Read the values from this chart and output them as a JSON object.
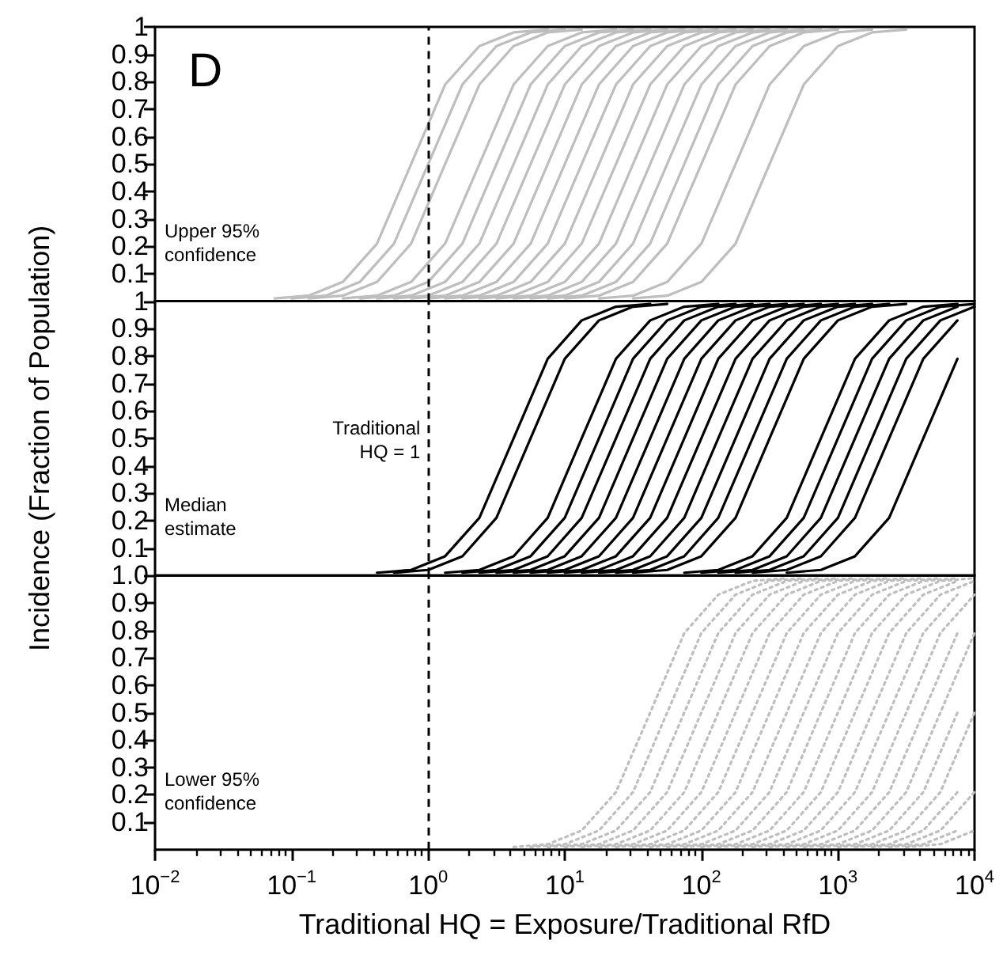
{
  "chart_data": [
    {
      "type": "line",
      "title": "D",
      "annotations": [
        "Upper 95%\nconfidence"
      ],
      "log": "x",
      "color": "#bebebe",
      "line_style": "solid",
      "tick_labels": "y",
      "xlim": [
        0.01,
        10000
      ],
      "ylim": [
        0,
        1
      ],
      "yticks": [
        0.1,
        0.2,
        0.3,
        0.4,
        0.5,
        0.6,
        0.7,
        0.8,
        0.9,
        1
      ],
      "ref_lines": [
        {
          "axis": "x",
          "value": 1,
          "line_style": "dashed",
          "color": "#000000"
        }
      ],
      "series": [
        {
          "x": [
            0.075,
            0.133,
            0.237,
            0.422,
            0.75,
            1.33,
            2.37,
            4.22,
            7.5
          ],
          "values": [
            0.01,
            0.02,
            0.07,
            0.21,
            0.5,
            0.79,
            0.93,
            0.98,
            0.99
          ]
        },
        {
          "x": [
            0.1,
            0.178,
            0.316,
            0.562,
            1,
            1.78,
            3.16,
            5.62,
            10
          ],
          "values": [
            0.01,
            0.02,
            0.07,
            0.21,
            0.5,
            0.79,
            0.93,
            0.98,
            0.99
          ]
        },
        {
          "x": [
            0.133,
            0.237,
            0.422,
            0.75,
            1.33,
            2.37,
            4.22,
            7.5,
            13.3
          ],
          "values": [
            0.01,
            0.02,
            0.07,
            0.21,
            0.5,
            0.79,
            0.93,
            0.98,
            0.99
          ]
        },
        {
          "x": [
            0.237,
            0.422,
            0.75,
            1.33,
            2.37,
            4.22,
            7.5,
            13.3,
            23.7
          ],
          "values": [
            0.01,
            0.02,
            0.07,
            0.21,
            0.5,
            0.79,
            0.93,
            0.98,
            0.99
          ]
        },
        {
          "x": [
            0.316,
            0.562,
            1,
            1.78,
            3.16,
            5.62,
            10,
            17.8,
            31.6
          ],
          "values": [
            0.01,
            0.02,
            0.07,
            0.21,
            0.5,
            0.79,
            0.93,
            0.98,
            0.99
          ]
        },
        {
          "x": [
            0.422,
            0.75,
            1.33,
            2.37,
            4.22,
            7.5,
            13.3,
            23.7,
            42.2
          ],
          "values": [
            0.01,
            0.02,
            0.07,
            0.21,
            0.5,
            0.79,
            0.93,
            0.98,
            0.99
          ]
        },
        {
          "x": [
            0.562,
            1,
            1.78,
            3.16,
            5.62,
            10,
            17.8,
            31.6,
            56.2
          ],
          "values": [
            0.01,
            0.02,
            0.07,
            0.21,
            0.5,
            0.79,
            0.93,
            0.98,
            0.99
          ]
        },
        {
          "x": [
            0.75,
            1.33,
            2.37,
            4.22,
            7.5,
            13.3,
            23.7,
            42.2,
            75
          ],
          "values": [
            0.01,
            0.02,
            0.07,
            0.21,
            0.5,
            0.79,
            0.93,
            0.98,
            0.99
          ]
        },
        {
          "x": [
            1,
            1.78,
            3.16,
            5.62,
            10,
            17.8,
            31.6,
            56.2,
            100
          ],
          "values": [
            0.01,
            0.02,
            0.07,
            0.21,
            0.5,
            0.79,
            0.93,
            0.98,
            0.99
          ]
        },
        {
          "x": [
            1.33,
            2.37,
            4.22,
            7.5,
            13.3,
            23.7,
            42.2,
            75,
            133
          ],
          "values": [
            0.01,
            0.02,
            0.07,
            0.21,
            0.5,
            0.79,
            0.93,
            0.98,
            0.99
          ]
        },
        {
          "x": [
            1.78,
            3.16,
            5.62,
            10,
            17.8,
            31.6,
            56.2,
            100,
            178
          ],
          "values": [
            0.01,
            0.02,
            0.07,
            0.21,
            0.5,
            0.79,
            0.93,
            0.98,
            0.99
          ]
        },
        {
          "x": [
            2.37,
            4.22,
            7.5,
            13.3,
            23.7,
            42.2,
            75,
            133,
            237
          ],
          "values": [
            0.01,
            0.02,
            0.07,
            0.21,
            0.5,
            0.79,
            0.93,
            0.98,
            0.99
          ]
        },
        {
          "x": [
            3.16,
            5.62,
            10,
            17.8,
            31.6,
            56.2,
            100,
            178,
            316
          ],
          "values": [
            0.01,
            0.02,
            0.07,
            0.21,
            0.5,
            0.79,
            0.93,
            0.98,
            0.99
          ]
        },
        {
          "x": [
            4.22,
            7.5,
            13.3,
            23.7,
            42.2,
            75,
            133,
            237,
            422
          ],
          "values": [
            0.01,
            0.02,
            0.07,
            0.21,
            0.5,
            0.79,
            0.93,
            0.98,
            0.99
          ]
        },
        {
          "x": [
            5.62,
            10,
            17.8,
            31.6,
            56.2,
            100,
            178,
            316,
            562
          ],
          "values": [
            0.01,
            0.02,
            0.07,
            0.21,
            0.5,
            0.79,
            0.93,
            0.98,
            0.99
          ]
        },
        {
          "x": [
            7.5,
            13.3,
            23.7,
            42.2,
            75,
            133,
            237,
            422,
            750
          ],
          "values": [
            0.01,
            0.02,
            0.07,
            0.21,
            0.5,
            0.79,
            0.93,
            0.98,
            0.99
          ]
        },
        {
          "x": [
            10,
            17.8,
            31.6,
            56.2,
            100,
            178,
            316,
            562,
            1000
          ],
          "values": [
            0.01,
            0.02,
            0.07,
            0.21,
            0.5,
            0.79,
            0.93,
            0.98,
            0.99
          ]
        },
        {
          "x": [
            17.8,
            31.6,
            56.2,
            100,
            178,
            316,
            562,
            1000,
            1778
          ],
          "values": [
            0.01,
            0.02,
            0.07,
            0.21,
            0.5,
            0.79,
            0.93,
            0.98,
            0.99
          ]
        },
        {
          "x": [
            31.6,
            56.2,
            100,
            178,
            316,
            562,
            1000,
            1778,
            3162
          ],
          "values": [
            0.01,
            0.02,
            0.07,
            0.21,
            0.5,
            0.79,
            0.93,
            0.98,
            0.99
          ]
        }
      ]
    },
    {
      "type": "line",
      "annotations": [
        "Median\nestimate"
      ],
      "ylabel": "Incidence (Fraction of Population)",
      "log": "x",
      "color": "#000000",
      "line_style": "solid",
      "tick_labels": "y",
      "xlim": [
        0.01,
        10000
      ],
      "ylim": [
        0,
        1
      ],
      "yticks": [
        0.1,
        0.2,
        0.3,
        0.4,
        0.5,
        0.6,
        0.7,
        0.8,
        0.9,
        1
      ],
      "ref_lines": [
        {
          "axis": "x",
          "value": 1,
          "line_style": "dashed",
          "color": "#000000",
          "label": "Traditional\nHQ = 1"
        }
      ],
      "series": [
        {
          "x": [
            0.422,
            0.75,
            1.33,
            2.37,
            4.22,
            7.5,
            13.3,
            23.7,
            42.2
          ],
          "values": [
            0.01,
            0.02,
            0.07,
            0.21,
            0.5,
            0.79,
            0.93,
            0.98,
            0.99
          ]
        },
        {
          "x": [
            0.562,
            1,
            1.78,
            3.16,
            5.62,
            10,
            17.8,
            31.6,
            56.2
          ],
          "values": [
            0.01,
            0.02,
            0.07,
            0.21,
            0.5,
            0.79,
            0.93,
            0.98,
            0.99
          ]
        },
        {
          "x": [
            1.33,
            2.37,
            4.22,
            7.5,
            13.3,
            23.7,
            42.2,
            75,
            133
          ],
          "values": [
            0.01,
            0.02,
            0.07,
            0.21,
            0.5,
            0.79,
            0.93,
            0.98,
            0.99
          ]
        },
        {
          "x": [
            1.78,
            3.16,
            5.62,
            10,
            17.8,
            31.6,
            56.2,
            100,
            178
          ],
          "values": [
            0.01,
            0.02,
            0.07,
            0.21,
            0.5,
            0.79,
            0.93,
            0.98,
            0.99
          ]
        },
        {
          "x": [
            2.37,
            4.22,
            7.5,
            13.3,
            23.7,
            42.2,
            75,
            133,
            237
          ],
          "values": [
            0.01,
            0.02,
            0.07,
            0.21,
            0.5,
            0.79,
            0.93,
            0.98,
            0.99
          ]
        },
        {
          "x": [
            3.16,
            5.62,
            10,
            17.8,
            31.6,
            56.2,
            100,
            178,
            316
          ],
          "values": [
            0.01,
            0.02,
            0.07,
            0.21,
            0.5,
            0.79,
            0.93,
            0.98,
            0.99
          ]
        },
        {
          "x": [
            4.22,
            7.5,
            13.3,
            23.7,
            42.2,
            75,
            133,
            237,
            422
          ],
          "values": [
            0.01,
            0.02,
            0.07,
            0.21,
            0.5,
            0.79,
            0.93,
            0.98,
            0.99
          ]
        },
        {
          "x": [
            5.62,
            10,
            17.8,
            31.6,
            56.2,
            100,
            178,
            316,
            562
          ],
          "values": [
            0.01,
            0.02,
            0.07,
            0.21,
            0.5,
            0.79,
            0.93,
            0.98,
            0.99
          ]
        },
        {
          "x": [
            7.5,
            13.3,
            23.7,
            42.2,
            75,
            133,
            237,
            422,
            750
          ],
          "values": [
            0.01,
            0.02,
            0.07,
            0.21,
            0.5,
            0.79,
            0.93,
            0.98,
            0.99
          ]
        },
        {
          "x": [
            10,
            17.8,
            31.6,
            56.2,
            100,
            178,
            316,
            562,
            1000
          ],
          "values": [
            0.01,
            0.02,
            0.07,
            0.21,
            0.5,
            0.79,
            0.93,
            0.98,
            0.99
          ]
        },
        {
          "x": [
            13.3,
            23.7,
            42.2,
            75,
            133,
            237,
            422,
            750,
            1333
          ],
          "values": [
            0.01,
            0.02,
            0.07,
            0.21,
            0.5,
            0.79,
            0.93,
            0.98,
            0.99
          ]
        },
        {
          "x": [
            17.8,
            31.6,
            56.2,
            100,
            178,
            316,
            562,
            1000,
            1778
          ],
          "values": [
            0.01,
            0.02,
            0.07,
            0.21,
            0.5,
            0.79,
            0.93,
            0.98,
            0.99
          ]
        },
        {
          "x": [
            23.7,
            42.2,
            75,
            133,
            237,
            422,
            750,
            1333,
            2371
          ],
          "values": [
            0.01,
            0.02,
            0.07,
            0.21,
            0.5,
            0.79,
            0.93,
            0.98,
            0.99
          ]
        },
        {
          "x": [
            31.6,
            56.2,
            100,
            178,
            316,
            562,
            1000,
            1778,
            3162
          ],
          "values": [
            0.01,
            0.02,
            0.07,
            0.21,
            0.5,
            0.79,
            0.93,
            0.98,
            0.99
          ]
        },
        {
          "x": [
            75,
            133,
            237,
            422,
            750,
            1333,
            2371,
            4217,
            7499
          ],
          "values": [
            0.01,
            0.02,
            0.07,
            0.21,
            0.5,
            0.79,
            0.93,
            0.98,
            0.99
          ]
        },
        {
          "x": [
            100,
            178,
            316,
            562,
            1000,
            1778,
            3162,
            5623,
            10000
          ],
          "values": [
            0.01,
            0.02,
            0.07,
            0.21,
            0.5,
            0.79,
            0.93,
            0.98,
            0.99
          ]
        },
        {
          "x": [
            133,
            237,
            422,
            750,
            1333,
            2371,
            4217,
            7499
          ],
          "values": [
            0.01,
            0.02,
            0.07,
            0.21,
            0.5,
            0.79,
            0.93,
            0.98
          ]
        },
        {
          "x": [
            178,
            316,
            562,
            1000,
            1778,
            3162,
            5623,
            10000
          ],
          "values": [
            0.01,
            0.02,
            0.07,
            0.21,
            0.5,
            0.79,
            0.93,
            0.98
          ]
        },
        {
          "x": [
            237,
            422,
            750,
            1333,
            2371,
            4217,
            7499
          ],
          "values": [
            0.01,
            0.02,
            0.07,
            0.21,
            0.5,
            0.79,
            0.93
          ]
        },
        {
          "x": [
            422,
            750,
            1333,
            2371,
            4217,
            7499
          ],
          "values": [
            0.01,
            0.02,
            0.07,
            0.21,
            0.5,
            0.79
          ]
        }
      ]
    },
    {
      "type": "line",
      "annotations": [
        "Lower 95%\nconfidence"
      ],
      "xlabel": "Traditional HQ = Exposure/Traditional RfD",
      "log": "x",
      "color": "#bebebe",
      "line_style": "dotted",
      "xlim": [
        0.01,
        10000
      ],
      "ylim": [
        0,
        1
      ],
      "yticks": [
        0.1,
        0.2,
        0.3,
        0.4,
        0.5,
        0.6,
        0.7,
        0.8,
        0.9,
        {
          "value": 1,
          "label": "1.0"
        }
      ],
      "xticks": [
        {
          "value": 0.01,
          "label": "10$^{−2}$"
        },
        {
          "value": 0.02,
          "label": null
        },
        {
          "value": 0.03,
          "label": null
        },
        {
          "value": 0.04,
          "label": null
        },
        {
          "value": 0.05,
          "label": null
        },
        {
          "value": 0.06,
          "label": null
        },
        {
          "value": 0.07,
          "label": null
        },
        {
          "value": 0.08,
          "label": null
        },
        {
          "value": 0.09,
          "label": null
        },
        {
          "value": 0.1,
          "label": "10$^{−1}$"
        },
        {
          "value": 0.2,
          "label": null
        },
        {
          "value": 0.3,
          "label": null
        },
        {
          "value": 0.4,
          "label": null
        },
        {
          "value": 0.5,
          "label": null
        },
        {
          "value": 0.6,
          "label": null
        },
        {
          "value": 0.7,
          "label": null
        },
        {
          "value": 0.8,
          "label": null
        },
        {
          "value": 0.9,
          "label": null
        },
        {
          "value": 1,
          "label": "10$^{0}$"
        },
        {
          "value": 2,
          "label": null
        },
        {
          "value": 3,
          "label": null
        },
        {
          "value": 4,
          "label": null
        },
        {
          "value": 5,
          "label": null
        },
        {
          "value": 6,
          "label": null
        },
        {
          "value": 7,
          "label": null
        },
        {
          "value": 8,
          "label": null
        },
        {
          "value": 9,
          "label": null
        },
        {
          "value": 10,
          "label": "10$^{1}$"
        },
        {
          "value": 20,
          "label": null
        },
        {
          "value": 30,
          "label": null
        },
        {
          "value": 40,
          "label": null
        },
        {
          "value": 50,
          "label": null
        },
        {
          "value": 60,
          "label": null
        },
        {
          "value": 70,
          "label": null
        },
        {
          "value": 80,
          "label": null
        },
        {
          "value": 90,
          "label": null
        },
        {
          "value": 100,
          "label": "10$^{2}$"
        },
        {
          "value": 200,
          "label": null
        },
        {
          "value": 300,
          "label": null
        },
        {
          "value": 400,
          "label": null
        },
        {
          "value": 500,
          "label": null
        },
        {
          "value": 600,
          "label": null
        },
        {
          "value": 700,
          "label": null
        },
        {
          "value": 800,
          "label": null
        },
        {
          "value": 900,
          "label": null
        },
        {
          "value": 1000,
          "label": "10$^{3}$"
        },
        {
          "value": 2000,
          "label": null
        },
        {
          "value": 3000,
          "label": null
        },
        {
          "value": 4000,
          "label": null
        },
        {
          "value": 5000,
          "label": null
        },
        {
          "value": 6000,
          "label": null
        },
        {
          "value": 7000,
          "label": null
        },
        {
          "value": 8000,
          "label": null
        },
        {
          "value": 9000,
          "label": null
        },
        {
          "value": 10000,
          "label": "10$^{4}$"
        }
      ],
      "ref_lines": [
        {
          "axis": "x",
          "value": 1,
          "line_style": "dashed",
          "color": "#000000"
        }
      ],
      "series": [
        {
          "x": [
            4.22,
            7.5,
            13.3,
            23.7,
            42.2,
            75,
            133,
            237,
            422
          ],
          "values": [
            0.01,
            0.02,
            0.07,
            0.21,
            0.5,
            0.79,
            0.93,
            0.98,
            0.99
          ]
        },
        {
          "x": [
            5.62,
            10,
            17.8,
            31.6,
            56.2,
            100,
            178,
            316,
            562
          ],
          "values": [
            0.01,
            0.02,
            0.07,
            0.21,
            0.5,
            0.79,
            0.93,
            0.98,
            0.99
          ]
        },
        {
          "x": [
            7.5,
            13.3,
            23.7,
            42.2,
            75,
            133,
            237,
            422,
            750
          ],
          "values": [
            0.01,
            0.02,
            0.07,
            0.21,
            0.5,
            0.79,
            0.93,
            0.98,
            0.99
          ]
        },
        {
          "x": [
            10,
            17.8,
            31.6,
            56.2,
            100,
            178,
            316,
            562,
            1000
          ],
          "values": [
            0.01,
            0.02,
            0.07,
            0.21,
            0.5,
            0.79,
            0.93,
            0.98,
            0.99
          ]
        },
        {
          "x": [
            13.3,
            23.7,
            42.2,
            75,
            133,
            237,
            422,
            750,
            1333
          ],
          "values": [
            0.01,
            0.02,
            0.07,
            0.21,
            0.5,
            0.79,
            0.93,
            0.98,
            0.99
          ]
        },
        {
          "x": [
            17.8,
            31.6,
            56.2,
            100,
            178,
            316,
            562,
            1000,
            1778
          ],
          "values": [
            0.01,
            0.02,
            0.07,
            0.21,
            0.5,
            0.79,
            0.93,
            0.98,
            0.99
          ]
        },
        {
          "x": [
            23.7,
            42.2,
            75,
            133,
            237,
            422,
            750,
            1333,
            2371
          ],
          "values": [
            0.01,
            0.02,
            0.07,
            0.21,
            0.5,
            0.79,
            0.93,
            0.98,
            0.99
          ]
        },
        {
          "x": [
            31.6,
            56.2,
            100,
            178,
            316,
            562,
            1000,
            1778,
            3162
          ],
          "values": [
            0.01,
            0.02,
            0.07,
            0.21,
            0.5,
            0.79,
            0.93,
            0.98,
            0.99
          ]
        },
        {
          "x": [
            42.2,
            75,
            133,
            237,
            422,
            750,
            1333,
            2371,
            4217
          ],
          "values": [
            0.01,
            0.02,
            0.07,
            0.21,
            0.5,
            0.79,
            0.93,
            0.98,
            0.99
          ]
        },
        {
          "x": [
            56.2,
            100,
            178,
            316,
            562,
            1000,
            1778,
            3162,
            5623
          ],
          "values": [
            0.01,
            0.02,
            0.07,
            0.21,
            0.5,
            0.79,
            0.93,
            0.98,
            0.99
          ]
        },
        {
          "x": [
            75,
            133,
            237,
            422,
            750,
            1333,
            2371,
            4217,
            7499
          ],
          "values": [
            0.01,
            0.02,
            0.07,
            0.21,
            0.5,
            0.79,
            0.93,
            0.98,
            0.99
          ]
        },
        {
          "x": [
            100,
            178,
            316,
            562,
            1000,
            1778,
            3162,
            5623,
            10000
          ],
          "values": [
            0.01,
            0.02,
            0.07,
            0.21,
            0.5,
            0.79,
            0.93,
            0.98,
            0.99
          ]
        },
        {
          "x": [
            133,
            237,
            422,
            750,
            1333,
            2371,
            4217,
            7499
          ],
          "values": [
            0.01,
            0.02,
            0.07,
            0.21,
            0.5,
            0.79,
            0.93,
            0.98
          ]
        },
        {
          "x": [
            178,
            316,
            562,
            1000,
            1778,
            3162,
            5623,
            10000
          ],
          "values": [
            0.01,
            0.02,
            0.07,
            0.21,
            0.5,
            0.79,
            0.93,
            0.98
          ]
        },
        {
          "x": [
            237,
            422,
            750,
            1333,
            2371,
            4217,
            7499
          ],
          "values": [
            0.01,
            0.02,
            0.07,
            0.21,
            0.5,
            0.79,
            0.93
          ]
        },
        {
          "x": [
            316,
            562,
            1000,
            1778,
            3162,
            5623,
            10000
          ],
          "values": [
            0.01,
            0.02,
            0.07,
            0.21,
            0.5,
            0.79,
            0.93
          ]
        },
        {
          "x": [
            422,
            750,
            1333,
            2371,
            4217,
            7499
          ],
          "values": [
            0.01,
            0.02,
            0.07,
            0.21,
            0.5,
            0.79
          ]
        },
        {
          "x": [
            562,
            1000,
            1778,
            3162,
            5623,
            10000
          ],
          "values": [
            0.01,
            0.02,
            0.07,
            0.21,
            0.5,
            0.79
          ]
        },
        {
          "x": [
            750,
            1333,
            2371,
            4217,
            7499
          ],
          "values": [
            0.01,
            0.02,
            0.07,
            0.21,
            0.5
          ]
        },
        {
          "x": [
            1000,
            1778,
            3162,
            5623,
            10000
          ],
          "values": [
            0.01,
            0.02,
            0.07,
            0.21,
            0.5
          ]
        },
        {
          "x": [
            1333,
            2371,
            4217,
            7499
          ],
          "values": [
            0.01,
            0.02,
            0.07,
            0.21
          ]
        },
        {
          "x": [
            1778,
            3162,
            5623,
            10000
          ],
          "values": [
            0.01,
            0.02,
            0.07,
            0.21
          ]
        },
        {
          "x": [
            2371,
            4217,
            7499
          ],
          "values": [
            0.01,
            0.02,
            0.07
          ]
        },
        {
          "x": [
            3162,
            5623,
            10000
          ],
          "values": [
            0.01,
            0.02,
            0.07
          ]
        }
      ]
    }
  ]
}
